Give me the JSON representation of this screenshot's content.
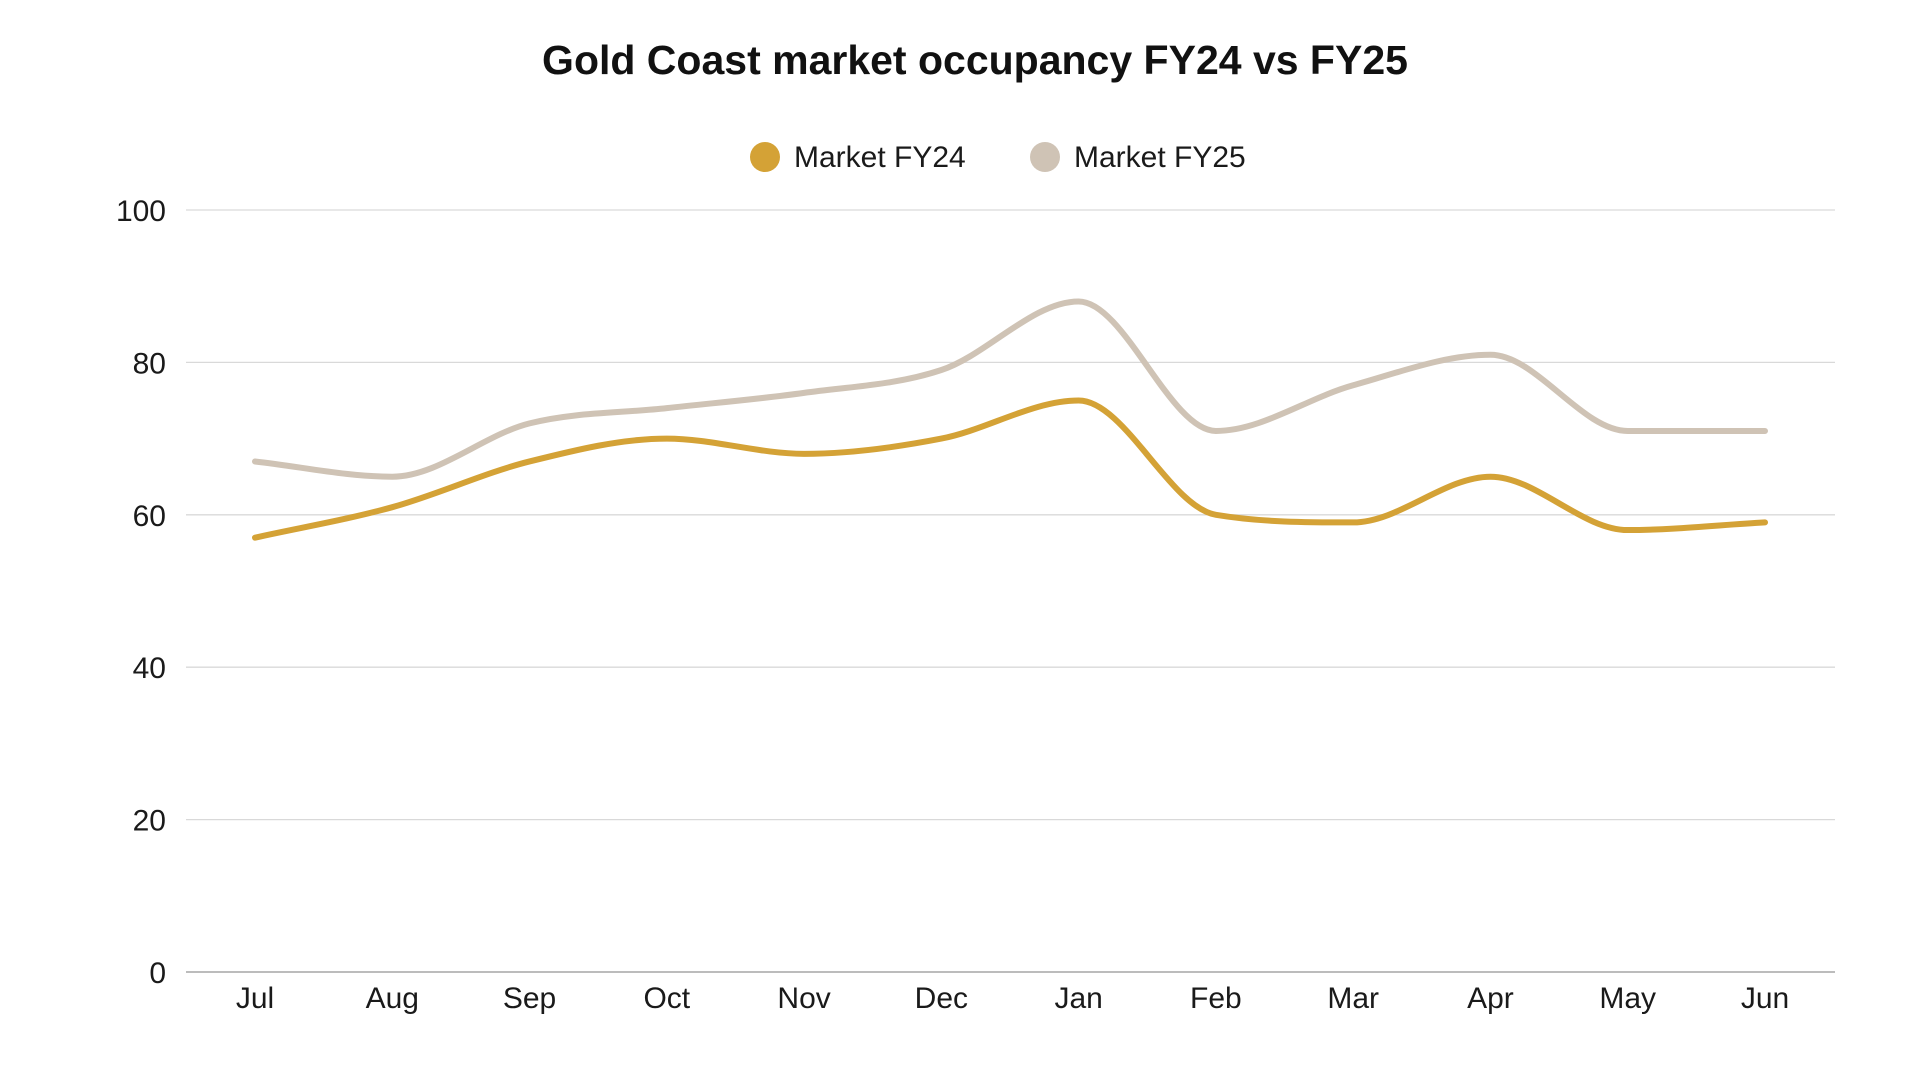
{
  "chart_data": {
    "type": "line",
    "title": "Gold Coast market occupancy FY24 vs FY25",
    "xlabel": "",
    "ylabel": "",
    "categories": [
      "Jul",
      "Aug",
      "Sep",
      "Oct",
      "Nov",
      "Dec",
      "Jan",
      "Feb",
      "Mar",
      "Apr",
      "May",
      "Jun"
    ],
    "ylim": [
      0,
      100
    ],
    "yticks": [
      "0",
      "20",
      "40",
      "60",
      "80",
      "100"
    ],
    "grid": true,
    "legend_position": "top-center",
    "smooth": true,
    "series": [
      {
        "name": "Market FY24",
        "color": "#D4A236",
        "values": [
          57,
          61,
          67,
          70,
          68,
          70,
          75,
          60,
          59,
          65,
          58,
          59
        ]
      },
      {
        "name": "Market FY25",
        "color": "#CFC3B5",
        "values": [
          67,
          65,
          72,
          74,
          76,
          79,
          88,
          71,
          77,
          81,
          71,
          71
        ]
      }
    ]
  }
}
